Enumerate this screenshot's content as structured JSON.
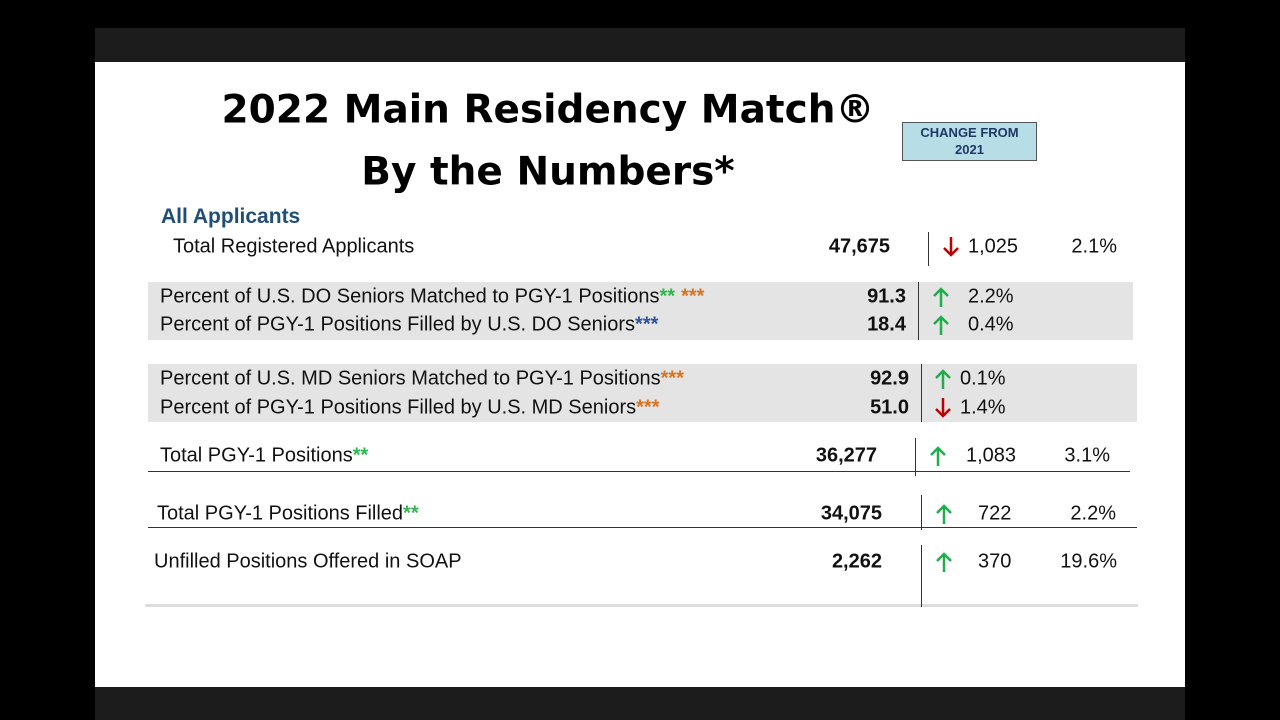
{
  "header": {
    "title_lines": [
      "2022 Main Residency Match®",
      "By the Numbers*"
    ],
    "badge_lines": [
      "CHANGE FROM",
      "2021"
    ]
  },
  "table": {
    "section": "All Applicants",
    "rows": [
      {
        "label": "Total Registered Applicants",
        "marks": [],
        "value": "47,675",
        "direction": "down",
        "change": "1,025",
        "pct": "2.1%"
      },
      {
        "label": "Percent of U.S. DO Seniors Matched to PGY-1 Positions",
        "marks": [
          {
            "text": "**",
            "color": "#2db84d"
          },
          {
            "text": "***",
            "color": "#d9731e"
          }
        ],
        "value": "91.3",
        "direction": "up",
        "change": "2.2%"
      },
      {
        "label": "Percent of PGY-1 Positions Filled by U.S. DO Seniors",
        "marks": [
          {
            "text": "***",
            "color": "#2f5597"
          }
        ],
        "value": "18.4",
        "direction": "up",
        "change": "0.4%"
      },
      {
        "label": "Percent of U.S. MD Seniors Matched to PGY-1 Positions",
        "marks": [
          {
            "text": "***",
            "color": "#d9731e"
          }
        ],
        "value": "92.9",
        "direction": "up",
        "change": "0.1%"
      },
      {
        "label": "Percent of PGY-1 Positions Filled by U.S. MD Seniors",
        "marks": [
          {
            "text": "***",
            "color": "#d9731e"
          }
        ],
        "value": "51.0",
        "direction": "down",
        "change": "1.4%"
      },
      {
        "label": "Total PGY-1 Positions",
        "marks": [
          {
            "text": "**",
            "color": "#2db84d"
          }
        ],
        "value": "36,277",
        "direction": "up",
        "change": "1,083",
        "pct": "3.1%"
      },
      {
        "label": "Total PGY-1 Positions Filled",
        "marks": [
          {
            "text": "**",
            "color": "#2db84d"
          }
        ],
        "value": "34,075",
        "direction": "up",
        "change": "722",
        "pct": "2.2%"
      },
      {
        "label": "Unfilled Positions Offered in SOAP",
        "marks": [],
        "value": "2,262",
        "direction": "up",
        "change": "370",
        "pct": "19.6%"
      }
    ]
  }
}
